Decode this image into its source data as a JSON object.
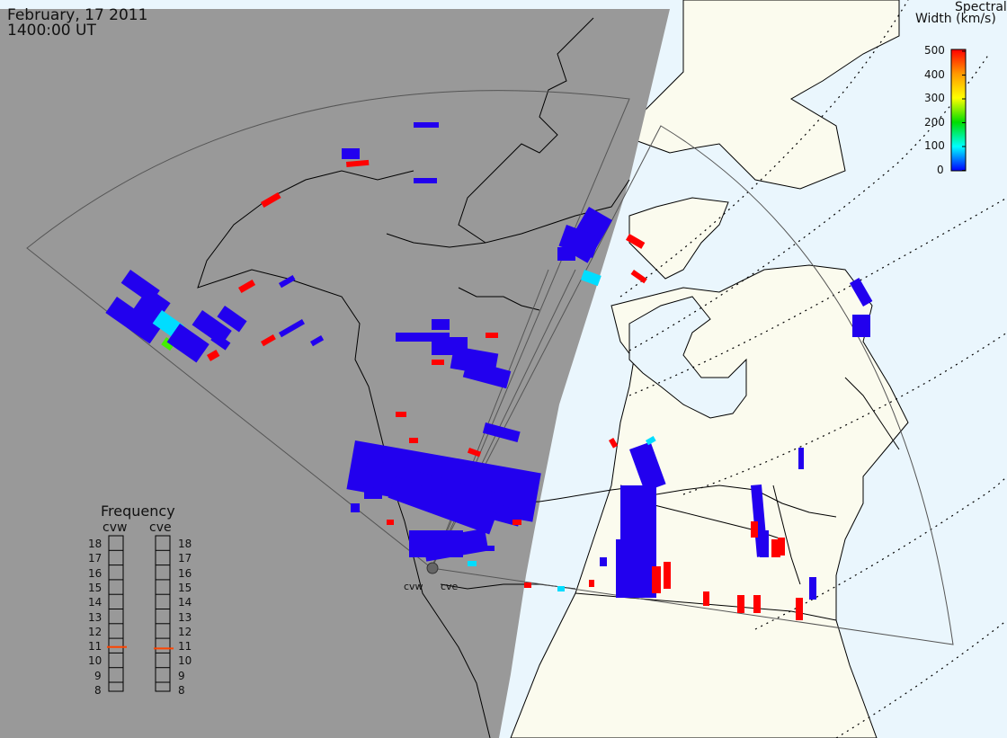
{
  "header": {
    "date": "February, 17 2011",
    "time": "1400:00 UT"
  },
  "colorbar": {
    "title_line1": "Spectral",
    "title_line2": "Width (km/s)",
    "ticks": [
      "500",
      "400",
      "300",
      "200",
      "100",
      "0"
    ],
    "value_range": [
      0,
      500
    ],
    "colors": [
      "#ff0000",
      "#ff9900",
      "#ffff00",
      "#00dd00",
      "#00ffff",
      "#0000ff"
    ]
  },
  "frequency_panel": {
    "title": "Frequency",
    "left_label": "cvw",
    "right_label": "cve",
    "scale": [
      "18",
      "17",
      "16",
      "15",
      "14",
      "13",
      "12",
      "11",
      "10",
      "9",
      "8"
    ],
    "cvw_value_mhz": 10.9,
    "cve_value_mhz": 10.8,
    "marker_color": "#ff4400"
  },
  "radars": {
    "west_label": "cvw",
    "east_label": "cve"
  },
  "map_colors": {
    "night": "#999999",
    "day_land": "#fbfbee",
    "ocean": "#eaf6fd",
    "scatter_main": "#2200ee",
    "scatter_high": "#ff0000",
    "scatter_mid": "#00ddff",
    "scatter_green": "#44ee00"
  }
}
